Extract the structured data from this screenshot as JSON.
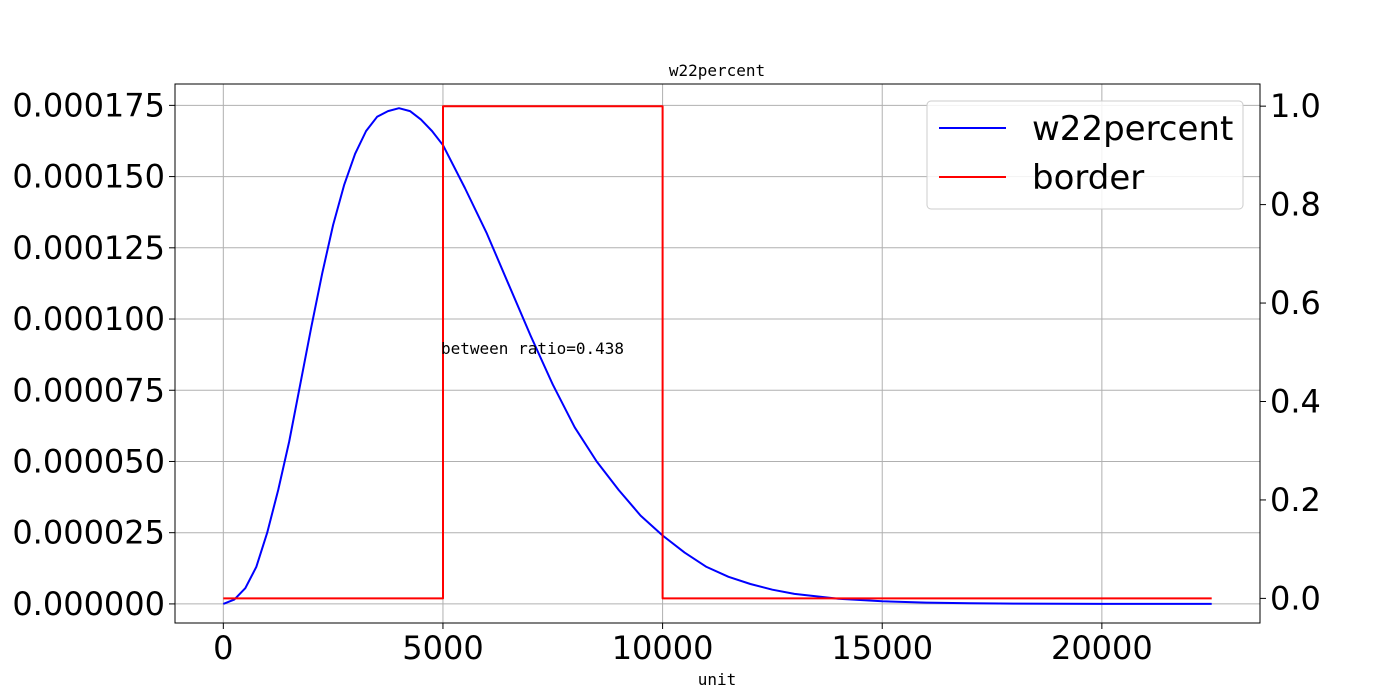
{
  "chart_data": {
    "type": "line",
    "title": "w22percent",
    "xlabel": "unit",
    "ylabel": "",
    "y2label": "",
    "xlim": [
      -1100,
      23600
    ],
    "ylim": [
      -6.7e-06,
      0.0001825
    ],
    "y2lim": [
      -0.05,
      1.045
    ],
    "xticks": [
      0,
      5000,
      10000,
      15000,
      20000
    ],
    "xtick_labels": [
      "0",
      "5000",
      "10000",
      "15000",
      "20000"
    ],
    "yticks": [
      0,
      2.5e-05,
      5e-05,
      7.5e-05,
      0.0001,
      0.000125,
      0.00015,
      0.000175
    ],
    "ytick_labels": [
      "0.000000",
      "0.000025",
      "0.000050",
      "0.000075",
      "0.000100",
      "0.000125",
      "0.000150",
      "0.000175"
    ],
    "y2ticks": [
      0,
      0.2,
      0.4,
      0.6,
      0.8,
      1.0
    ],
    "y2tick_labels": [
      "0.0",
      "0.2",
      "0.4",
      "0.6",
      "0.8",
      "1.0"
    ],
    "grid": true,
    "legend_position": "top-right",
    "series": [
      {
        "name": "w22percent",
        "axis": "left",
        "color": "#0000ff",
        "x": [
          0,
          250,
          500,
          750,
          1000,
          1250,
          1500,
          1750,
          2000,
          2250,
          2500,
          2750,
          3000,
          3250,
          3500,
          3750,
          4000,
          4250,
          4500,
          4750,
          5000,
          5500,
          6000,
          6500,
          7000,
          7500,
          8000,
          8500,
          9000,
          9500,
          10000,
          10500,
          11000,
          11500,
          12000,
          12500,
          13000,
          14000,
          15000,
          16000,
          17000,
          18000,
          19000,
          20000,
          21000,
          22000,
          22500
        ],
        "y": [
          0.0,
          1.5e-06,
          5.5e-06,
          1.3e-05,
          2.5e-05,
          4e-05,
          5.7e-05,
          7.7e-05,
          9.7e-05,
          0.000116,
          0.000133,
          0.000147,
          0.000158,
          0.000166,
          0.000171,
          0.000173,
          0.000174,
          0.000173,
          0.00017,
          0.000166,
          0.000161,
          0.000146,
          0.00013,
          0.000112,
          9.4e-05,
          7.7e-05,
          6.2e-05,
          5e-05,
          4e-05,
          3.1e-05,
          2.4e-05,
          1.8e-05,
          1.3e-05,
          9.5e-06,
          7e-06,
          5e-06,
          3.5e-06,
          1.8e-06,
          9e-07,
          4.5e-07,
          2e-07,
          1e-07,
          5e-08,
          2e-08,
          1e-08,
          0.0,
          0.0
        ]
      },
      {
        "name": "border",
        "axis": "right",
        "color": "#ff0000",
        "x": [
          0,
          5000,
          5000,
          10000,
          10000,
          22500
        ],
        "y": [
          0,
          0,
          1,
          1,
          0,
          0
        ]
      }
    ],
    "annotations": [
      {
        "text": "between ratio=0.438",
        "x": 5000,
        "y2": 0.5
      }
    ]
  }
}
